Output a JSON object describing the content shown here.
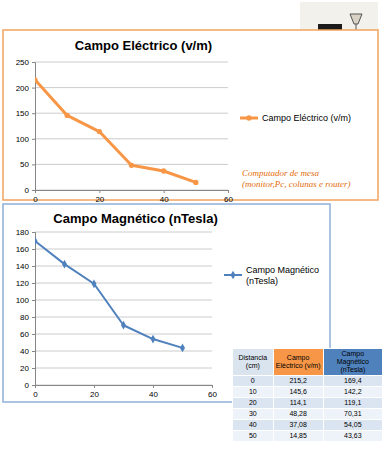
{
  "chart_data": [
    {
      "type": "line",
      "title": "Campo Eléctrico (v/m)",
      "x": [
        0,
        10,
        20,
        30,
        40,
        50
      ],
      "series": [
        {
          "name": "Campo Eléctrico (v/m)",
          "color": "#f79646",
          "marker": "circle",
          "values": [
            215.2,
            145.6,
            114.1,
            48.28,
            37.08,
            14.85
          ]
        }
      ],
      "xlim": [
        0,
        60
      ],
      "xticks": [
        0,
        20,
        40,
        60
      ],
      "ylim": [
        0,
        250
      ],
      "yticks": [
        0,
        50,
        100,
        150,
        200,
        250
      ],
      "grid": true,
      "legend": "right",
      "annotations": [
        "Computador de mesa",
        "(monitor,Pc, colunas e router)"
      ]
    },
    {
      "type": "line",
      "title": "Campo Magnético (nTesla)",
      "x": [
        0,
        10,
        20,
        30,
        40,
        50
      ],
      "series": [
        {
          "name": "Campo Magnético (nTesla)",
          "color": "#4f81bd",
          "marker": "diamond",
          "values": [
            169.4,
            142.2,
            119.1,
            70.31,
            54.05,
            43.63
          ]
        }
      ],
      "xlim": [
        0,
        60
      ],
      "xticks": [
        0,
        20,
        40,
        60
      ],
      "ylim": [
        0,
        180
      ],
      "yticks": [
        0,
        20,
        40,
        60,
        80,
        100,
        120,
        140,
        160,
        180
      ],
      "grid": true,
      "legend": "right"
    }
  ],
  "table": {
    "header": [
      "Distancia (cm)",
      "Campo Eléctrico (v/m)",
      "Campo Magnético (nTesla)"
    ],
    "rows": [
      [
        "0",
        "215,2",
        "169,4"
      ],
      [
        "10",
        "145,6",
        "142,2"
      ],
      [
        "20",
        "114,1",
        "119,1"
      ],
      [
        "30",
        "48,28",
        "70,31"
      ],
      [
        "40",
        "37,08",
        "54,05"
      ],
      [
        "50",
        "14,85",
        "43,63"
      ]
    ]
  }
}
